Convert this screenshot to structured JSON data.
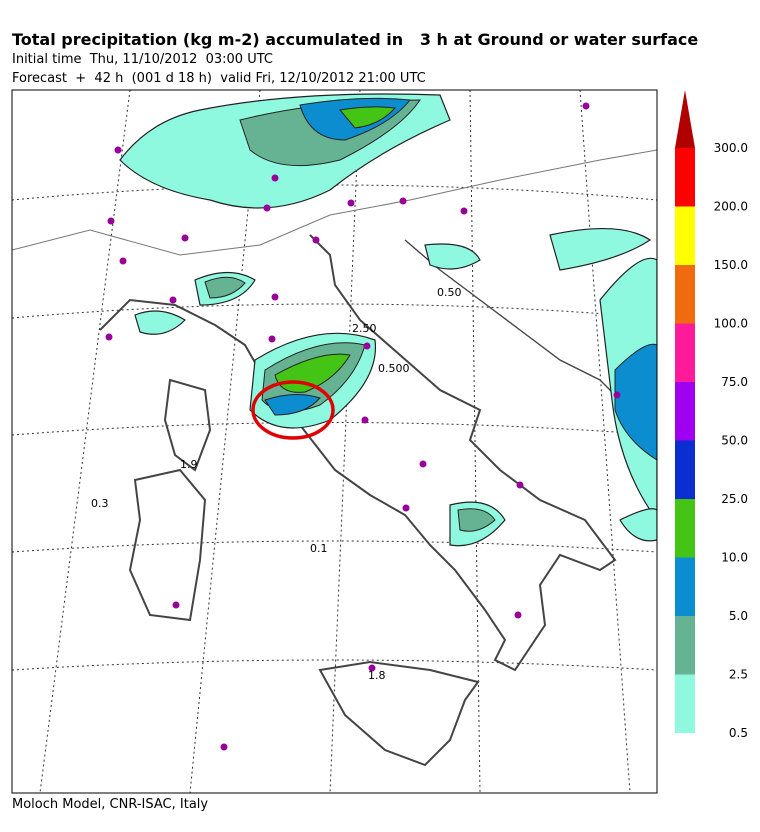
{
  "header": {
    "title": "Total precipitation (kg m-2) accumulated in   3 h at Ground or water surface",
    "initial_time": "Initial time  Thu, 11/10/2012  03:00 UTC",
    "forecast": "Forecast  +  42 h  (001 d 18 h)  valid Fri, 12/10/2012 21:00 UTC"
  },
  "map": {
    "labels": [
      "0.50",
      "2.50",
      "0.500",
      "1.9",
      "0.3",
      "0.1",
      "1.8"
    ]
  },
  "legend": {
    "levels": [
      {
        "label": "0.5",
        "color": "#8ff9e0"
      },
      {
        "label": "2.5",
        "color": "#66b393"
      },
      {
        "label": "5.0",
        "color": "#0b8dd0"
      },
      {
        "label": "10.0",
        "color": "#44c414"
      },
      {
        "label": "25.0",
        "color": "#0a2ed0"
      },
      {
        "label": "50.0",
        "color": "#a000f0"
      },
      {
        "label": "75.0",
        "color": "#ff1a9a"
      },
      {
        "label": "100.0",
        "color": "#f06a10"
      },
      {
        "label": "150.0",
        "color": "#ffff00"
      },
      {
        "label": "200.0",
        "color": "#ff0000"
      },
      {
        "label": "300.0",
        "color": "#b00000"
      }
    ]
  },
  "footer": {
    "text": "Moloch Model, CNR-ISAC, Italy"
  }
}
